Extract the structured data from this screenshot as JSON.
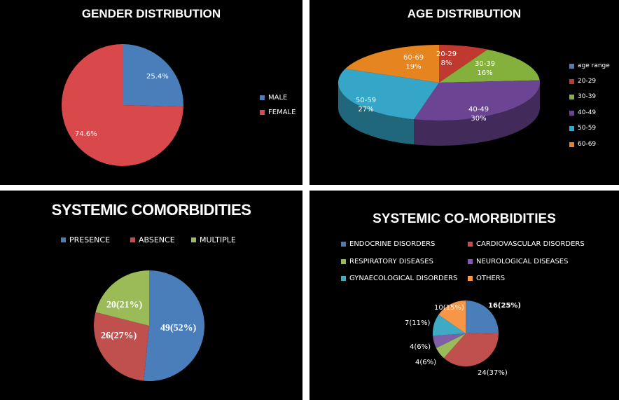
{
  "chart_data": [
    {
      "type": "pie",
      "title": "GENDER DISTRIBUTION",
      "categories": [
        "MALE",
        "FEMALE"
      ],
      "values": [
        25.4,
        74.6
      ],
      "data_labels": [
        "25.4%",
        "74.6%"
      ],
      "colors": [
        "#4a7ebb",
        "#d9484a"
      ],
      "legend": "right"
    },
    {
      "type": "pie",
      "title": "AGE DISTRIBUTION",
      "legend_title": "age range",
      "categories": [
        "20-29",
        "30-39",
        "40-49",
        "50-59",
        "60-69"
      ],
      "values": [
        8,
        16,
        30,
        27,
        19
      ],
      "data_labels": [
        "20-29\n8%",
        "30-39\n16%",
        "40-49\n30%",
        "50-59\n27%",
        "60-69\n19%"
      ],
      "colors": [
        "#c0392f",
        "#84b13c",
        "#6b4593",
        "#35a6c7",
        "#e68420"
      ],
      "legend": "right"
    },
    {
      "type": "pie",
      "title": "SYSTEMIC COMORBIDITIES",
      "categories": [
        "PRESENCE",
        "ABSENCE",
        "MULTIPLE"
      ],
      "values": [
        49,
        26,
        20
      ],
      "data_labels": [
        "49(52%)",
        "26(27%)",
        "20(21%)"
      ],
      "colors": [
        "#4a7ebb",
        "#c0504d",
        "#9bbb59"
      ],
      "legend": "top"
    },
    {
      "type": "pie",
      "title": "SYSTEMIC CO-MORBIDITIES",
      "categories": [
        "ENDOCRINE DISORDERS",
        "CARDIOVASCULAR DISORDERS",
        "RESPIRATORY DISEASES",
        "NEUROLOGICAL DISEASES",
        "GYNAECOLOGICAL DISORDERS",
        "OTHERS"
      ],
      "values": [
        16,
        24,
        4,
        4,
        7,
        10
      ],
      "data_labels": [
        "16(25%)",
        "24(37%)",
        "4(6%)",
        "4(6%)",
        "7(11%)",
        "10(15%)"
      ],
      "colors": [
        "#4a7ebb",
        "#c0504d",
        "#9bbb59",
        "#7f5fa8",
        "#3faac4",
        "#f79646"
      ],
      "legend": "top"
    }
  ]
}
